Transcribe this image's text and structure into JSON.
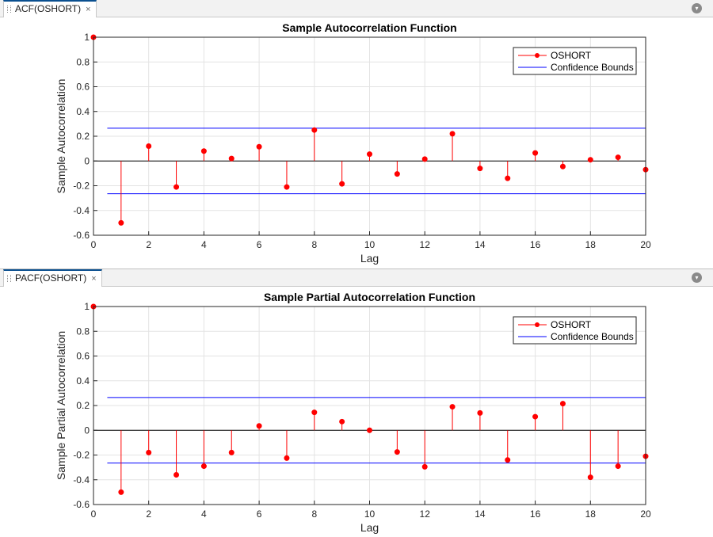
{
  "panels": [
    {
      "tab_label": "ACF(OSHORT)",
      "close_glyph": "×",
      "menu_glyph": "▾",
      "chart": {
        "type": "stem",
        "title": "Sample Autocorrelation Function",
        "xlabel": "Lag",
        "ylabel": "Sample Autocorrelation",
        "xlim": [
          0,
          20
        ],
        "ylim": [
          -0.6,
          1
        ],
        "xticks": [
          0,
          2,
          4,
          6,
          8,
          10,
          12,
          14,
          16,
          18,
          20
        ],
        "yticks": [
          -0.6,
          -0.4,
          -0.2,
          0,
          0.2,
          0.4,
          0.6,
          0.8,
          1
        ],
        "ytick_labels": [
          "-0.6",
          "-0.4",
          "-0.2",
          "0",
          "0.2",
          "0.4",
          "0.6",
          "0.8",
          "1"
        ],
        "grid": true,
        "legend_location": "top-right",
        "series": [
          {
            "name": "OSHORT",
            "color": "#ff0000",
            "x": [
              0,
              1,
              2,
              3,
              4,
              5,
              6,
              7,
              8,
              9,
              10,
              11,
              12,
              13,
              14,
              15,
              16,
              17,
              18,
              19,
              20
            ],
            "values": [
              1.0,
              -0.5,
              0.12,
              -0.21,
              0.08,
              0.02,
              0.115,
              -0.21,
              0.25,
              -0.185,
              0.055,
              -0.105,
              0.015,
              0.22,
              -0.06,
              -0.14,
              0.065,
              -0.045,
              0.01,
              0.03,
              -0.07
            ]
          }
        ],
        "bounds": {
          "name": "Confidence Bounds",
          "color": "#0000ff",
          "upper": 0.265,
          "lower": -0.265,
          "x_start": 0.5
        }
      }
    },
    {
      "tab_label": "PACF(OSHORT)",
      "close_glyph": "×",
      "menu_glyph": "▾",
      "chart": {
        "type": "stem",
        "title": "Sample Partial Autocorrelation Function",
        "xlabel": "Lag",
        "ylabel": "Sample Partial Autocorrelation",
        "xlim": [
          0,
          20
        ],
        "ylim": [
          -0.6,
          1
        ],
        "xticks": [
          0,
          2,
          4,
          6,
          8,
          10,
          12,
          14,
          16,
          18,
          20
        ],
        "yticks": [
          -0.6,
          -0.4,
          -0.2,
          0,
          0.2,
          0.4,
          0.6,
          0.8,
          1
        ],
        "ytick_labels": [
          "-0.6",
          "-0.4",
          "-0.2",
          "0",
          "0.2",
          "0.4",
          "0.6",
          "0.8",
          "1"
        ],
        "grid": true,
        "legend_location": "top-right",
        "series": [
          {
            "name": "OSHORT",
            "color": "#ff0000",
            "x": [
              0,
              1,
              2,
              3,
              4,
              5,
              6,
              7,
              8,
              9,
              10,
              11,
              12,
              13,
              14,
              15,
              16,
              17,
              18,
              19,
              20
            ],
            "values": [
              1.0,
              -0.5,
              -0.18,
              -0.36,
              -0.29,
              -0.18,
              0.035,
              -0.225,
              0.145,
              0.07,
              0.0,
              -0.175,
              -0.295,
              0.19,
              0.14,
              -0.24,
              0.11,
              0.215,
              -0.38,
              -0.29,
              -0.21
            ]
          }
        ],
        "bounds": {
          "name": "Confidence Bounds",
          "color": "#0000ff",
          "upper": 0.265,
          "lower": -0.265,
          "x_start": 0.5
        }
      }
    }
  ]
}
